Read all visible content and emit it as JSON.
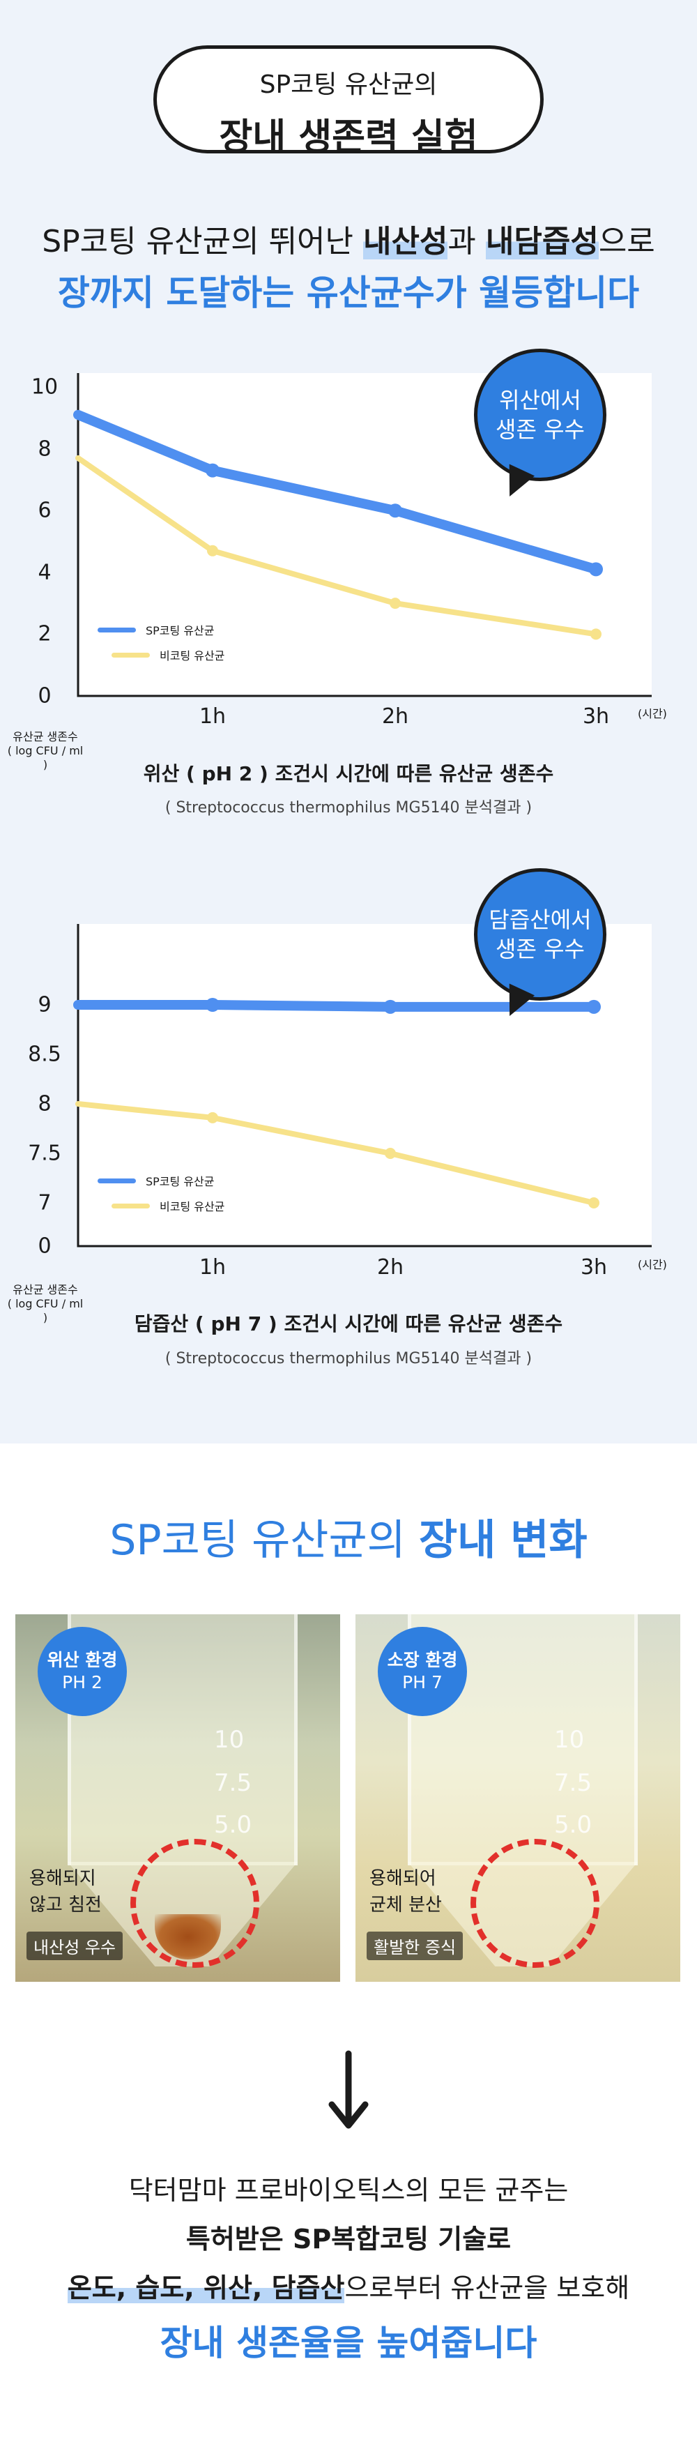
{
  "header": {
    "pill_line1": "SP코팅 유산균의",
    "pill_line2": "장내 생존력 실험",
    "intro_pre": "SP코팅 유산균의 뛰어난 ",
    "intro_hl1": "내산성",
    "intro_mid": "과 ",
    "intro_hl2": "내담즙성",
    "intro_post": "으로",
    "intro_line2": "장까지 도달하는 유산균수가 월등합니다"
  },
  "colors": {
    "accent": "#2f7fe0",
    "sp_line": "#4f8ff0",
    "non_line": "#f7e28a",
    "background_top": "#eef3fa",
    "highlight": "#b9d6f7",
    "circle": "#e2302b"
  },
  "chart_data": [
    {
      "type": "line",
      "bubble_line1": "위산에서",
      "bubble_line2": "생존 우수",
      "x": [
        "0",
        "1h",
        "2h",
        "3h"
      ],
      "x_ticks": [
        "1h",
        "2h",
        "3h"
      ],
      "xunit": "(시간)",
      "ylabel_line1": "유산균 생존수",
      "ylabel_line2": "( log CFU / ml )",
      "y_ticks": [
        "10",
        "8",
        "6",
        "4",
        "2",
        "0"
      ],
      "ylim": [
        0,
        10.2
      ],
      "legend_position": "bottom-left",
      "series": [
        {
          "name": "SP코팅 유산균",
          "values": [
            9.1,
            7.3,
            6.0,
            4.1
          ]
        },
        {
          "name": "비코팅 유산균",
          "values": [
            7.7,
            4.7,
            3.0,
            2.0
          ]
        }
      ],
      "caption": "위산 ( pH 2 ) 조건시 시간에 따른 유산균 생존수",
      "subcaption": "( Streptococcus thermophilus MG5140 분석결과 )"
    },
    {
      "type": "line",
      "bubble_line1": "담즙산에서",
      "bubble_line2": "생존 우수",
      "x": [
        "0",
        "1h",
        "2h",
        "3h"
      ],
      "x_ticks": [
        "1h",
        "2h",
        "3h"
      ],
      "xunit": "(시간)",
      "ylabel_line1": "유산균 생존수",
      "ylabel_line2": "( log CFU / ml )",
      "y_ticks": [
        "9",
        "8.5",
        "8",
        "7.5",
        "7",
        "0"
      ],
      "y_axis_break": true,
      "ylim": [
        6.5,
        9.6
      ],
      "legend_position": "bottom-left",
      "series": [
        {
          "name": "SP코팅 유산균",
          "values": [
            9.0,
            9.0,
            8.98,
            8.98
          ]
        },
        {
          "name": "비코팅 유산균",
          "values": [
            8.0,
            7.86,
            7.5,
            7.0
          ]
        }
      ],
      "caption": "담즙산 ( pH 7 ) 조건시 시간에 따른 유산균 생존수",
      "subcaption": "( Streptococcus thermophilus MG5140 분석결과 )"
    }
  ],
  "section2": {
    "title_plain": "SP코팅 유산균의 ",
    "title_bold": "장내 변화"
  },
  "photos": [
    {
      "badge_line1": "위산 환경",
      "badge_line2": "PH 2",
      "text_line1": "용해되지",
      "text_line2": "않고 침전",
      "tag": "내산성 우수",
      "marks": [
        "10",
        "7.5",
        "5.0"
      ]
    },
    {
      "badge_line1": "소장 환경",
      "badge_line2": "PH 7",
      "text_line1": "용해되어",
      "text_line2": "균체 분산",
      "tag": "활발한 증식",
      "marks": [
        "10",
        "7.5",
        "5.0"
      ]
    }
  ],
  "arrow_icon": "arrow-down-icon",
  "outro": {
    "line1": "닥터맘마 프로바이오틱스의 모든 균주는",
    "line2": "특허받은 SP복합코팅 기술로",
    "line3_hl": "온도, 습도, 위산, 담즙산",
    "line3_post": "으로부터 유산균을 보호해",
    "line4": "장내 생존율을 높여줍니다"
  }
}
